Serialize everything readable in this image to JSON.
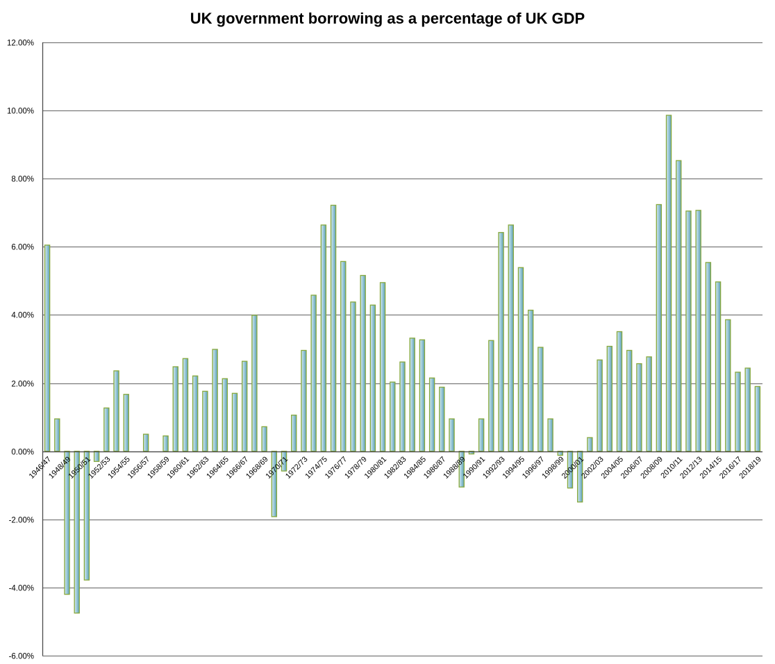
{
  "chart_data": {
    "type": "bar",
    "title": "UK government borrowing as a percentage of UK GDP",
    "xlabel": "",
    "ylabel": "",
    "ylim": [
      -6,
      12
    ],
    "y_ticks": [
      "12.00%",
      "10.00%",
      "8.00%",
      "6.00%",
      "4.00%",
      "2.00%",
      "0.00%",
      "-2.00%",
      "-4.00%",
      "-6.00%"
    ],
    "y_tick_values": [
      12,
      10,
      8,
      6,
      4,
      2,
      0,
      -2,
      -4,
      -6
    ],
    "categories": [
      "1946/47",
      "1947/48",
      "1948/49",
      "1949/50",
      "1950/51",
      "1951/52",
      "1952/53",
      "1953/54",
      "1954/55",
      "1955/56",
      "1956/57",
      "1957/58",
      "1958/59",
      "1959/60",
      "1960/61",
      "1961/62",
      "1962/63",
      "1963/64",
      "1964/65",
      "1965/66",
      "1966/67",
      "1967/68",
      "1968/69",
      "1969/70",
      "1970/71",
      "1971/72",
      "1972/73",
      "1973/74",
      "1974/75",
      "1975/76",
      "1976/77",
      "1977/78",
      "1978/79",
      "1979/80",
      "1980/81",
      "1981/82",
      "1982/83",
      "1983/84",
      "1984/85",
      "1985/86",
      "1986/87",
      "1987/88",
      "1988/89",
      "1989/90",
      "1990/91",
      "1991/92",
      "1992/93",
      "1993/94",
      "1994/95",
      "1995/96",
      "1996/97",
      "1997/98",
      "1998/99",
      "1999/00",
      "2000/01",
      "2001/02",
      "2002/03",
      "2003/04",
      "2004/05",
      "2005/06",
      "2006/07",
      "2007/08",
      "2008/09",
      "2009/10",
      "2010/11",
      "2011/12",
      "2012/13",
      "2013/14",
      "2014/15",
      "2015/16",
      "2016/17",
      "2017/18",
      "2018/19"
    ],
    "labeled_categories": [
      "1946/47",
      "1948/49",
      "1950/51",
      "1952/53",
      "1954/55",
      "1956/57",
      "1958/59",
      "1960/61",
      "1962/63",
      "1964/65",
      "1966/67",
      "1968/69",
      "1970/71",
      "1972/73",
      "1974/75",
      "1976/77",
      "1978/79",
      "1980/81",
      "1982/83",
      "1984/85",
      "1986/87",
      "1988/89",
      "1990/91",
      "1992/93",
      "1994/95",
      "1996/97",
      "1998/99",
      "2000/01",
      "2002/03",
      "2004/05",
      "2006/07",
      "2008/09",
      "2010/11",
      "2012/13",
      "2014/15",
      "2016/17",
      "2018/19"
    ],
    "values": [
      6.05,
      0.95,
      -4.2,
      -4.75,
      -3.78,
      -0.3,
      1.27,
      2.36,
      1.67,
      0.0,
      0.5,
      0.0,
      0.45,
      2.48,
      2.72,
      2.21,
      1.76,
      2.99,
      2.13,
      1.7,
      2.64,
      3.99,
      0.72,
      -1.92,
      -0.58,
      1.06,
      2.96,
      4.58,
      6.64,
      7.22,
      5.57,
      4.38,
      5.16,
      4.29,
      4.95,
      2.03,
      2.62,
      3.32,
      3.27,
      2.15,
      1.88,
      0.95,
      -1.05,
      -0.08,
      0.95,
      3.25,
      6.42,
      6.64,
      5.39,
      4.14,
      3.05,
      0.95,
      -0.12,
      -1.08,
      -1.49,
      0.4,
      2.68,
      3.08,
      3.51,
      2.96,
      2.57,
      2.77,
      7.24,
      9.86,
      8.53,
      7.05,
      7.07,
      5.54,
      4.97,
      3.86,
      2.32,
      2.44,
      1.9
    ]
  }
}
